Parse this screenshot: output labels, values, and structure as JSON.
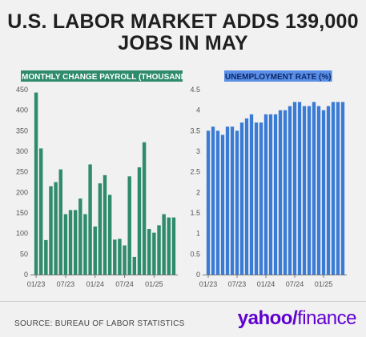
{
  "title_line1": "U.S. LABOR MARKET ADDS 139,000",
  "title_line2": "JOBS IN MAY",
  "source": "SOURCE: BUREAU OF LABOR STATISTICS",
  "logo": {
    "part1": "yahoo",
    "slash": "/",
    "part2": "finance"
  },
  "colors": {
    "payroll": "#2e8b6b",
    "payroll_label_bg": "#2e8b6b",
    "unemployment": "#3a7bd5",
    "unemployment_label_bg": "#5b8ee6"
  },
  "chart_data": [
    {
      "type": "bar",
      "title": "MONTHLY CHANGE PAYROLL (THOUSANDS)",
      "categories": [
        "01/23",
        "02/23",
        "03/23",
        "04/23",
        "05/23",
        "06/23",
        "07/23",
        "08/23",
        "09/23",
        "10/23",
        "11/23",
        "12/23",
        "01/24",
        "02/24",
        "03/24",
        "04/24",
        "05/24",
        "06/24",
        "07/24",
        "08/24",
        "09/24",
        "10/24",
        "11/24",
        "12/24",
        "01/25",
        "02/25",
        "03/25",
        "04/25",
        "05/25"
      ],
      "values": [
        443,
        307,
        84,
        215,
        225,
        256,
        147,
        157,
        157,
        185,
        147,
        268,
        117,
        222,
        242,
        194,
        85,
        87,
        71,
        239,
        43,
        261,
        322,
        111,
        102,
        120,
        147,
        139,
        139
      ],
      "xticks": [
        "01/23",
        "07/23",
        "01/24",
        "07/24",
        "01/25"
      ],
      "ylim": [
        0,
        450
      ],
      "yticks": [
        0,
        50,
        100,
        150,
        200,
        250,
        300,
        350,
        400,
        450
      ],
      "grid": false
    },
    {
      "type": "bar",
      "title": "UNEMPLOYMENT RATE (%)",
      "categories": [
        "01/23",
        "02/23",
        "03/23",
        "04/23",
        "05/23",
        "06/23",
        "07/23",
        "08/23",
        "09/23",
        "10/23",
        "11/23",
        "12/23",
        "01/24",
        "02/24",
        "03/24",
        "04/24",
        "05/24",
        "06/24",
        "07/24",
        "08/24",
        "09/24",
        "10/24",
        "11/24",
        "12/24",
        "01/25",
        "02/25",
        "03/25",
        "04/25",
        "05/25"
      ],
      "values": [
        3.5,
        3.6,
        3.5,
        3.4,
        3.6,
        3.6,
        3.5,
        3.7,
        3.8,
        3.9,
        3.7,
        3.7,
        3.9,
        3.9,
        3.9,
        4.0,
        4.0,
        4.1,
        4.2,
        4.2,
        4.1,
        4.1,
        4.2,
        4.1,
        4.0,
        4.1,
        4.2,
        4.2,
        4.2
      ],
      "xticks": [
        "01/23",
        "07/23",
        "01/24",
        "07/24",
        "01/25"
      ],
      "ylim": [
        0,
        4.5
      ],
      "yticks": [
        0,
        0.5,
        1,
        1.5,
        2,
        2.5,
        3,
        3.5,
        4,
        4.5
      ],
      "grid": false
    }
  ]
}
